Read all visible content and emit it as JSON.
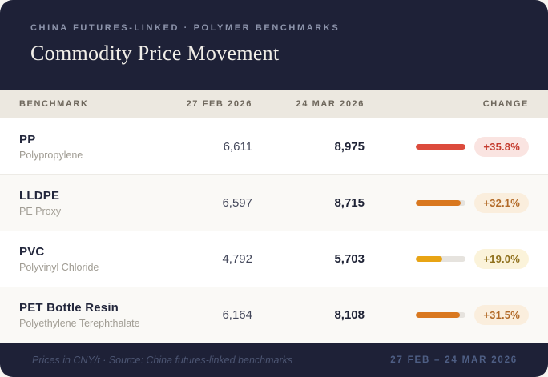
{
  "header": {
    "eyebrow": "CHINA FUTURES-LINKED · POLYMER BENCHMARKS",
    "title": "Commodity Price Movement"
  },
  "table": {
    "columns": {
      "benchmark": "BENCHMARK",
      "prev_date": "27 FEB 2026",
      "curr_date": "24 MAR 2026",
      "change": "CHANGE"
    },
    "rows": [
      {
        "name": "PP",
        "subtitle": "Polypropylene",
        "prev": "6,611",
        "curr": "8,975",
        "change": "+35.8%",
        "bar_pct": 100,
        "bar_color": "#dc4b3c",
        "badge_bg": "#fae4e1",
        "badge_color": "#c53d30"
      },
      {
        "name": "LLDPE",
        "subtitle": "PE Proxy",
        "prev": "6,597",
        "curr": "8,715",
        "change": "+32.1%",
        "bar_pct": 90,
        "bar_color": "#d9781f",
        "badge_bg": "#faeedd",
        "badge_color": "#b26a28"
      },
      {
        "name": "PVC",
        "subtitle": "Polyvinyl Chloride",
        "prev": "4,792",
        "curr": "5,703",
        "change": "+19.0%",
        "bar_pct": 53,
        "bar_color": "#e8a414",
        "badge_bg": "#fbf3da",
        "badge_color": "#8f701c"
      },
      {
        "name": "PET Bottle Resin",
        "subtitle": "Polyethylene Terephthalate",
        "prev": "6,164",
        "curr": "8,108",
        "change": "+31.5%",
        "bar_pct": 88,
        "bar_color": "#d9781f",
        "badge_bg": "#faeedd",
        "badge_color": "#b26a28"
      }
    ]
  },
  "footer": {
    "note": "Prices in CNY/t · Source: China futures-linked benchmarks",
    "range": "27 FEB – 24 MAR 2026"
  },
  "colors": {
    "header_bg": "#1e2137",
    "thead_bg": "#ece8e0",
    "row_alt_bg": "#faf9f6",
    "bar_track": "#e6e3de",
    "red": "#dc4b3c",
    "orange": "#d9781f",
    "amber": "#e8a414"
  },
  "chart_data": {
    "type": "table",
    "title": "Commodity Price Movement",
    "subtitle": "China Futures-Linked · Polymer Benchmarks",
    "units": "CNY/t",
    "columns": [
      "Benchmark",
      "27 Feb 2026",
      "24 Mar 2026",
      "Change"
    ],
    "rows": [
      [
        "PP (Polypropylene)",
        6611,
        8975,
        "+35.8%"
      ],
      [
        "LLDPE (PE Proxy)",
        6597,
        8715,
        "+32.1%"
      ],
      [
        "PVC (Polyvinyl Chloride)",
        4792,
        5703,
        "+19.0%"
      ],
      [
        "PET Bottle Resin (Polyethylene Terephthalate)",
        6164,
        8108,
        "+31.5%"
      ]
    ],
    "bar_pct_change": [
      35.8,
      32.1,
      19.0,
      31.5
    ],
    "bar_scale_max": 35.8,
    "date_range": "27 Feb – 24 Mar 2026"
  }
}
